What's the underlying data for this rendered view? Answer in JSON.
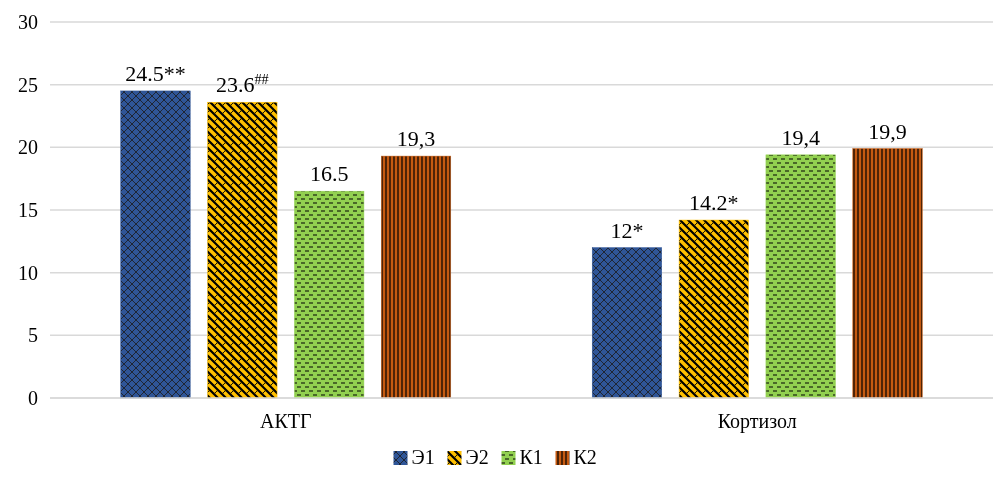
{
  "chart_data": {
    "type": "bar",
    "categories": [
      "АКТГ",
      "Кортизол"
    ],
    "series": [
      {
        "name": "Э1",
        "color": "#2f5597",
        "values": [
          24.5,
          12
        ],
        "value_labels": [
          "24.5**",
          "12*"
        ]
      },
      {
        "name": "Э2",
        "color": "#ffc000",
        "values": [
          23.6,
          14.2
        ],
        "value_labels": [
          "23.6$^{##}$",
          "14.2*"
        ]
      },
      {
        "name": "К1",
        "color": "#92d050",
        "values": [
          16.5,
          19.4
        ],
        "value_labels": [
          "16.5",
          "19,4"
        ]
      },
      {
        "name": "К2",
        "color": "#c55a11",
        "values": [
          19.3,
          19.9
        ],
        "value_labels": [
          "19,3",
          "19,9"
        ]
      }
    ],
    "ylim": [
      0,
      30
    ],
    "yticks": [
      0,
      5,
      10,
      15,
      20,
      25,
      30
    ],
    "grid": "y",
    "legend": "bottom"
  }
}
